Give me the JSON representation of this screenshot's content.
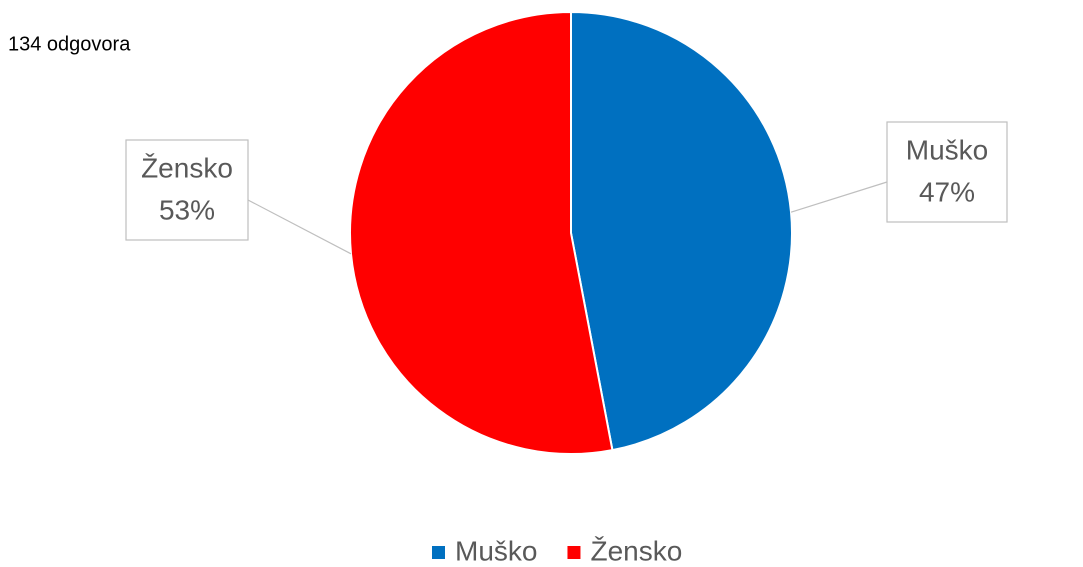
{
  "chart_data": {
    "type": "pie",
    "subtitle": "134 odgovora",
    "categories": [
      "Muško",
      "Žensko"
    ],
    "values": [
      47,
      53
    ],
    "value_labels": [
      "47%",
      "53%"
    ],
    "colors": [
      "#0070c0",
      "#ff0000"
    ],
    "legend": "bottom"
  }
}
